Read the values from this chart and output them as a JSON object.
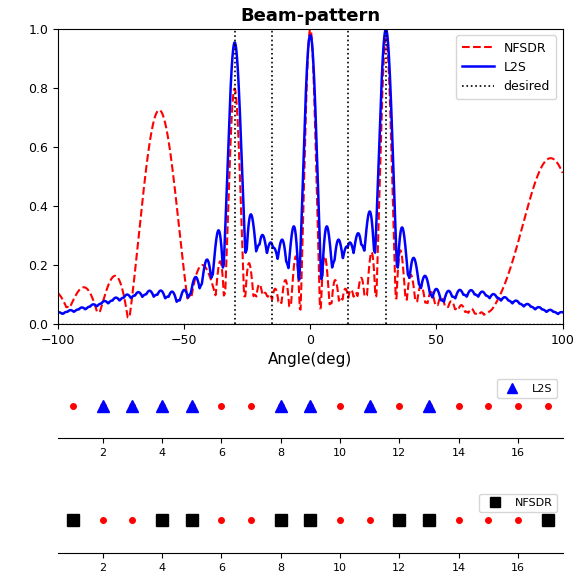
{
  "title": "Beam-pattern",
  "xlabel": "Angle(deg)",
  "xlim": [
    -100,
    100
  ],
  "ylim": [
    0,
    1
  ],
  "yticks": [
    0,
    0.2,
    0.4,
    0.6,
    0.8,
    1
  ],
  "xticks": [
    -100,
    -50,
    0,
    50,
    100
  ],
  "desired_lines": [
    -30,
    -15,
    15,
    30
  ],
  "legend_labels": [
    "NFSDR",
    "L2S",
    "desired"
  ],
  "nfsdr_color": "#ff0000",
  "l2s_color": "#0000ff",
  "desired_color": "#000000",
  "total_elements": 17,
  "l2s_selected": [
    2,
    3,
    4,
    5,
    8,
    9,
    11,
    13
  ],
  "nfsdr_selected": [
    1,
    4,
    5,
    8,
    9,
    12,
    13,
    17
  ],
  "array_xticks": [
    2,
    4,
    6,
    8,
    10,
    12,
    14,
    16
  ]
}
